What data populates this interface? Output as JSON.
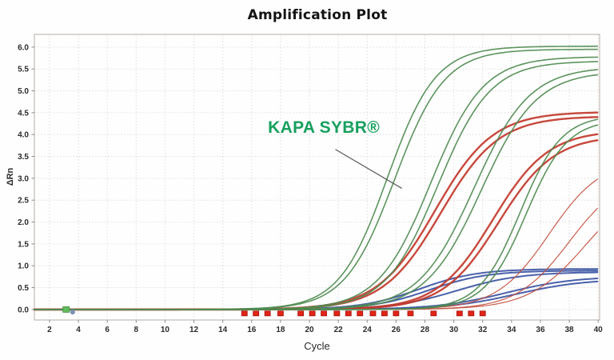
{
  "chart_data": {
    "type": "line",
    "title": "Amplification Plot",
    "xlabel": "Cycle",
    "ylabel": "ΔRn",
    "xlim": [
      0.95,
      40.1
    ],
    "ylim": [
      -0.24,
      6.29
    ],
    "x_ticks": [
      2,
      4,
      6,
      8,
      10,
      12,
      14,
      16,
      18,
      20,
      22,
      24,
      26,
      28,
      30,
      32,
      34,
      36,
      38,
      40
    ],
    "y_ticks": [
      "0.0",
      "0.5",
      "1.0",
      "1.5",
      "2.0",
      "2.5",
      "3.0",
      "3.5",
      "4.0",
      "4.5",
      "5.0",
      "5.5",
      "6.0"
    ],
    "grid": true,
    "legend": "none",
    "colors": {
      "green_series": "#4e8b50",
      "red_series": "#c23a2c",
      "blue_series": "#3a54a4",
      "annotation_green": "#17a05e",
      "grid_line": "#e2dada",
      "plot_border": "#b5ada6",
      "tick_text": "#2b2b2b",
      "threshold_marker": "#e02417",
      "threshold_marker_edge": "#a81309",
      "baseline_marker_green": "#63bb5d",
      "baseline_marker_dot": "#7d92b5",
      "leader_line": "#5a5a5a"
    },
    "series_model_note": "sigmoid: dRn = plateau / (1 + exp(-slope*(cycle - midpoint)))",
    "series": [
      {
        "name": "green-curve-1",
        "color": "#4e8b50",
        "stroke_width": 1.6,
        "midpoint_cycle": 25.4,
        "plateau": 6.02,
        "slope": 0.6
      },
      {
        "name": "green-curve-2",
        "color": "#4e8b50",
        "stroke_width": 1.6,
        "midpoint_cycle": 25.9,
        "plateau": 5.95,
        "slope": 0.58
      },
      {
        "name": "green-curve-3",
        "color": "#4e8b50",
        "stroke_width": 1.6,
        "midpoint_cycle": 28.4,
        "plateau": 5.78,
        "slope": 0.55
      },
      {
        "name": "green-curve-4",
        "color": "#4e8b50",
        "stroke_width": 1.6,
        "midpoint_cycle": 28.9,
        "plateau": 5.68,
        "slope": 0.55
      },
      {
        "name": "green-curve-5",
        "color": "#4e8b50",
        "stroke_width": 1.6,
        "midpoint_cycle": 31.4,
        "plateau": 5.55,
        "slope": 0.52
      },
      {
        "name": "green-curve-6",
        "color": "#4e8b50",
        "stroke_width": 1.6,
        "midpoint_cycle": 31.9,
        "plateau": 5.45,
        "slope": 0.52
      },
      {
        "name": "green-curve-7",
        "color": "#4e8b50",
        "stroke_width": 1.6,
        "midpoint_cycle": 34.6,
        "plateau": 4.45,
        "slope": 0.7
      },
      {
        "name": "green-curve-8",
        "color": "#4e8b50",
        "stroke_width": 1.6,
        "midpoint_cycle": 35.0,
        "plateau": 4.35,
        "slope": 0.7
      },
      {
        "name": "red-curve-1",
        "color": "#c23a2c",
        "stroke_width": 2.4,
        "midpoint_cycle": 28.7,
        "plateau": 4.52,
        "slope": 0.5
      },
      {
        "name": "red-curve-2",
        "color": "#c23a2c",
        "stroke_width": 2.4,
        "midpoint_cycle": 29.1,
        "plateau": 4.42,
        "slope": 0.5
      },
      {
        "name": "red-curve-3",
        "color": "#c23a2c",
        "stroke_width": 2.4,
        "midpoint_cycle": 32.7,
        "plateau": 4.1,
        "slope": 0.52
      },
      {
        "name": "red-curve-4",
        "color": "#c23a2c",
        "stroke_width": 2.4,
        "midpoint_cycle": 33.1,
        "plateau": 3.98,
        "slope": 0.52
      },
      {
        "name": "red-curve-5",
        "color": "#c4503f",
        "stroke_width": 1.2,
        "midpoint_cycle": 36.6,
        "plateau": 3.45,
        "slope": 0.55
      },
      {
        "name": "red-curve-6",
        "color": "#c4503f",
        "stroke_width": 1.2,
        "midpoint_cycle": 38.0,
        "plateau": 3.1,
        "slope": 0.55
      },
      {
        "name": "red-curve-7",
        "color": "#c4503f",
        "stroke_width": 1.2,
        "midpoint_cycle": 39.2,
        "plateau": 3.0,
        "slope": 0.5
      },
      {
        "name": "blue-curve-1",
        "color": "#3a54a4",
        "stroke_width": 2.0,
        "midpoint_cycle": 27.6,
        "plateau": 0.93,
        "slope": 0.5
      },
      {
        "name": "blue-curve-2",
        "color": "#3a54a4",
        "stroke_width": 2.0,
        "midpoint_cycle": 28.3,
        "plateau": 0.89,
        "slope": 0.5
      },
      {
        "name": "blue-curve-3",
        "color": "#3a54a4",
        "stroke_width": 2.0,
        "midpoint_cycle": 30.2,
        "plateau": 0.86,
        "slope": 0.45
      },
      {
        "name": "blue-curve-4",
        "color": "#3a54a4",
        "stroke_width": 2.0,
        "midpoint_cycle": 33.6,
        "plateau": 0.76,
        "slope": 0.42
      },
      {
        "name": "blue-curve-5",
        "color": "#3a54a4",
        "stroke_width": 2.0,
        "midpoint_cycle": 34.3,
        "plateau": 0.7,
        "slope": 0.42
      }
    ],
    "threshold_markers": {
      "value": -0.09,
      "cycles": [
        15.5,
        16.3,
        17.1,
        18.0,
        19.4,
        20.2,
        21.0,
        21.9,
        22.7,
        23.5,
        24.4,
        25.2,
        26.0,
        27.0,
        28.6,
        30.4,
        31.2,
        32.0
      ]
    },
    "baseline_marker": {
      "cycle": 3.15,
      "value": 0.0,
      "dot_cycle": 3.6,
      "dot_value": -0.06
    },
    "annotation": {
      "text": "KAPA SYBR®",
      "text_cycle": 21.0,
      "text_value": 4.15,
      "leader_from": [
        21.8,
        3.66
      ],
      "leader_to": [
        26.4,
        2.77
      ]
    }
  }
}
